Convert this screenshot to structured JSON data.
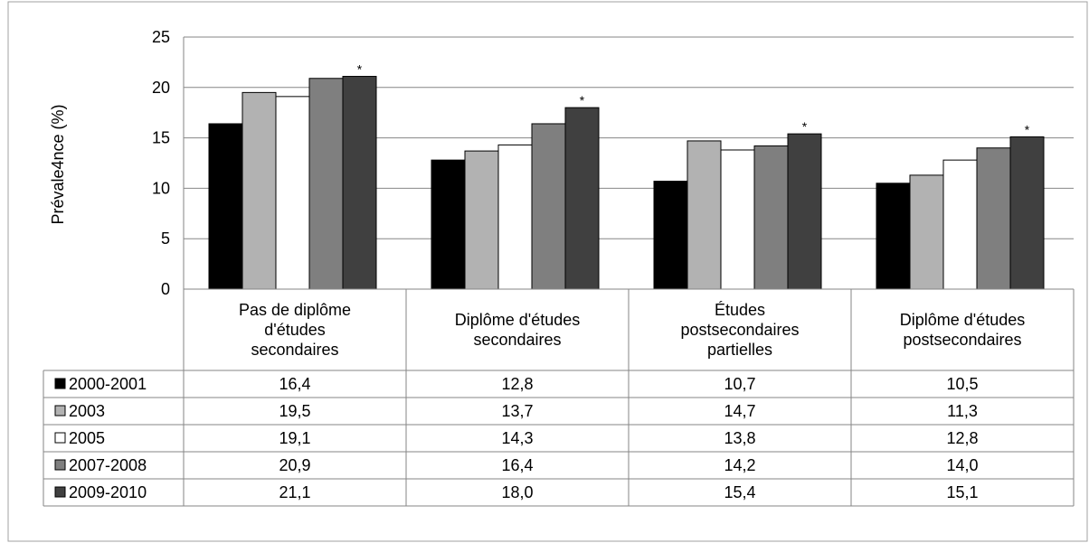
{
  "chart_data": {
    "type": "bar",
    "ylabel": "Prévale4nce (%)",
    "ylim": [
      0,
      25
    ],
    "yticks": [
      0,
      5,
      10,
      15,
      20,
      25
    ],
    "grid": true,
    "categories": [
      [
        "Pas de diplôme",
        "d'études",
        "secondaires"
      ],
      [
        "Diplôme d'études",
        "secondaires"
      ],
      [
        "Études",
        "postsecondaires",
        "partielles"
      ],
      [
        "Diplôme d'études",
        "postsecondaires"
      ]
    ],
    "series": [
      {
        "name": "2000-2001",
        "color": "#000000",
        "values": [
          16.4,
          12.8,
          10.7,
          10.5
        ],
        "labels": [
          "16,4",
          "12,8",
          "10,7",
          "10,5"
        ]
      },
      {
        "name": "2003",
        "color": "#b2b2b2",
        "values": [
          19.5,
          13.7,
          14.7,
          11.3
        ],
        "labels": [
          "19,5",
          "13,7",
          "14,7",
          "11,3"
        ]
      },
      {
        "name": "2005",
        "color": "#ffffff",
        "values": [
          19.1,
          14.3,
          13.8,
          12.8
        ],
        "labels": [
          "19,1",
          "14,3",
          "13,8",
          "12,8"
        ]
      },
      {
        "name": "2007-2008",
        "color": "#7f7f7f",
        "values": [
          20.9,
          16.4,
          14.2,
          14.0
        ],
        "labels": [
          "20,9",
          "16,4",
          "14,2",
          "14,0"
        ]
      },
      {
        "name": "2009-2010",
        "color": "#404040",
        "values": [
          21.1,
          18.0,
          15.4,
          15.1
        ],
        "labels": [
          "21,1",
          "18,0",
          "15,4",
          "15,1"
        ]
      }
    ],
    "annotation": "*",
    "legend": "data-table"
  }
}
